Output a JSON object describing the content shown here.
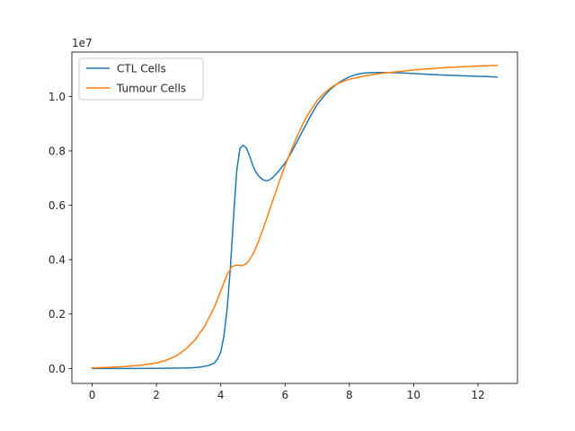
{
  "chart_data": {
    "type": "line",
    "title": "",
    "xlabel": "",
    "ylabel": "",
    "xlim": [
      -0.63,
      13.23
    ],
    "ylim": [
      -0.055,
      1.163
    ],
    "y_offset_text": "1e7",
    "grid": false,
    "legend_placement": "upper-left",
    "x_ticks": [
      0,
      2,
      4,
      6,
      8,
      10,
      12
    ],
    "x_tick_labels": [
      "0",
      "2",
      "4",
      "6",
      "8",
      "10",
      "12"
    ],
    "y_ticks": [
      0.0,
      0.2,
      0.4,
      0.6,
      0.8,
      1.0
    ],
    "y_tick_labels": [
      "0.0",
      "0.2",
      "0.4",
      "0.6",
      "0.8",
      "1.0"
    ],
    "series": [
      {
        "name": "CTL Cells",
        "color": "#1f77b4",
        "x": [
          0,
          1,
          2,
          2.5,
          3,
          3.3,
          3.6,
          3.8,
          3.9,
          4.0,
          4.1,
          4.2,
          4.3,
          4.4,
          4.5,
          4.6,
          4.7,
          4.8,
          4.9,
          5.0,
          5.1,
          5.2,
          5.3,
          5.4,
          5.5,
          5.6,
          5.7,
          5.8,
          5.9,
          6.0,
          6.2,
          6.4,
          6.6,
          6.8,
          7.0,
          7.2,
          7.4,
          7.6,
          7.8,
          8.0,
          8.2,
          8.4,
          8.6,
          8.8,
          9.0,
          9.5,
          10.0,
          10.5,
          11.0,
          11.5,
          12.0,
          12.3,
          12.6
        ],
        "y": [
          0.0,
          0.0,
          0.0005,
          0.001,
          0.002,
          0.004,
          0.01,
          0.02,
          0.035,
          0.06,
          0.12,
          0.22,
          0.37,
          0.56,
          0.73,
          0.81,
          0.82,
          0.81,
          0.78,
          0.745,
          0.72,
          0.705,
          0.695,
          0.69,
          0.692,
          0.7,
          0.712,
          0.725,
          0.74,
          0.755,
          0.795,
          0.84,
          0.885,
          0.93,
          0.97,
          1.0,
          1.025,
          1.045,
          1.06,
          1.072,
          1.08,
          1.085,
          1.087,
          1.088,
          1.088,
          1.087,
          1.084,
          1.081,
          1.078,
          1.076,
          1.074,
          1.073,
          1.071
        ]
      },
      {
        "name": "Tumour Cells",
        "color": "#ff7f0e",
        "x": [
          0,
          0.5,
          1,
          1.5,
          2,
          2.3,
          2.6,
          2.9,
          3.2,
          3.5,
          3.8,
          4.0,
          4.2,
          4.35,
          4.5,
          4.65,
          4.8,
          4.9,
          5.0,
          5.1,
          5.2,
          5.4,
          5.6,
          5.8,
          6.0,
          6.2,
          6.4,
          6.6,
          6.8,
          7.0,
          7.2,
          7.4,
          7.6,
          7.8,
          8.0,
          8.5,
          9.0,
          9.5,
          10.0,
          10.5,
          11.0,
          11.5,
          12.0,
          12.3,
          12.6
        ],
        "y": [
          0.002,
          0.004,
          0.007,
          0.012,
          0.02,
          0.03,
          0.045,
          0.07,
          0.105,
          0.155,
          0.225,
          0.285,
          0.345,
          0.375,
          0.38,
          0.378,
          0.385,
          0.4,
          0.42,
          0.445,
          0.475,
          0.54,
          0.61,
          0.68,
          0.745,
          0.805,
          0.86,
          0.91,
          0.95,
          0.985,
          1.01,
          1.03,
          1.045,
          1.055,
          1.063,
          1.076,
          1.085,
          1.091,
          1.097,
          1.102,
          1.106,
          1.109,
          1.112,
          1.113,
          1.114
        ]
      }
    ]
  }
}
